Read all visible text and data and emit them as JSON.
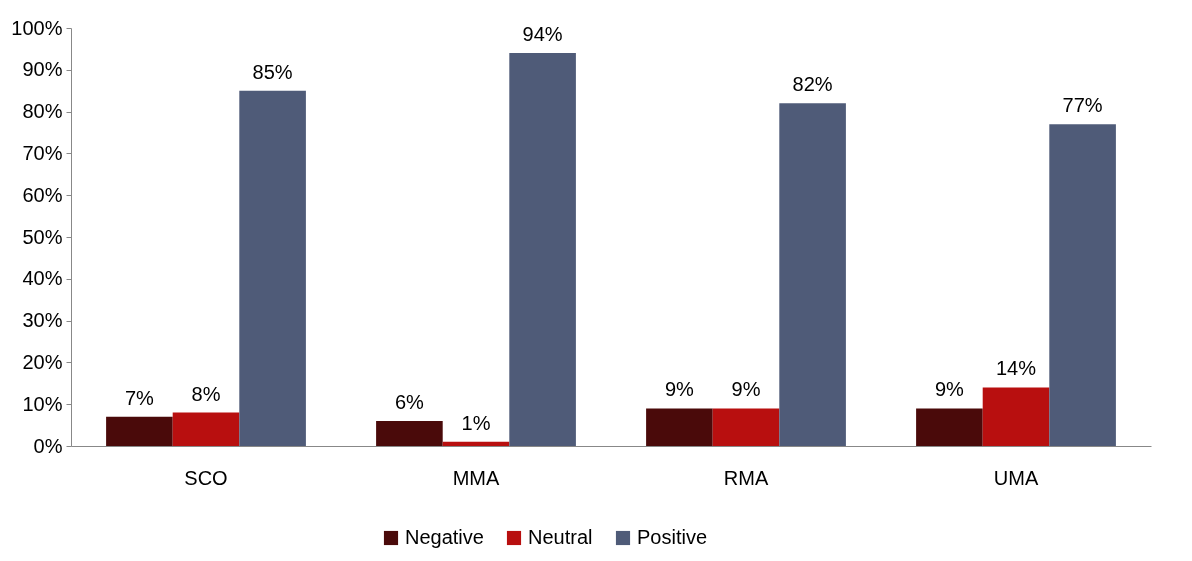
{
  "chart_data": {
    "type": "bar",
    "categories": [
      "SCO",
      "MMA",
      "RMA",
      "UMA"
    ],
    "series": [
      {
        "name": "Negative",
        "color": "#4a0a0a",
        "values": [
          7,
          6,
          9,
          9
        ],
        "value_labels": [
          "7%",
          "6%",
          "9%",
          "9%"
        ]
      },
      {
        "name": "Neutral",
        "color": "#b80f0f",
        "values": [
          8,
          1,
          9,
          14
        ],
        "value_labels": [
          "8%",
          "1%",
          "9%",
          "14%"
        ]
      },
      {
        "name": "Positive",
        "color": "#4f5b78",
        "values": [
          85,
          94,
          82,
          77
        ],
        "value_labels": [
          "85%",
          "94%",
          "82%",
          "77%"
        ]
      }
    ],
    "ylim": [
      0,
      100
    ],
    "yticks": [
      {
        "value": 0,
        "label": "0%"
      },
      {
        "value": 10,
        "label": "10%"
      },
      {
        "value": 20,
        "label": "20%"
      },
      {
        "value": 30,
        "label": "30%"
      },
      {
        "value": 40,
        "label": "40%"
      },
      {
        "value": 50,
        "label": "50%"
      },
      {
        "value": 60,
        "label": "60%"
      },
      {
        "value": 70,
        "label": "70%"
      },
      {
        "value": 80,
        "label": "80%"
      },
      {
        "value": 90,
        "label": "90%"
      },
      {
        "value": 100,
        "label": "100%"
      }
    ],
    "grid": false,
    "legend": "bottom"
  }
}
